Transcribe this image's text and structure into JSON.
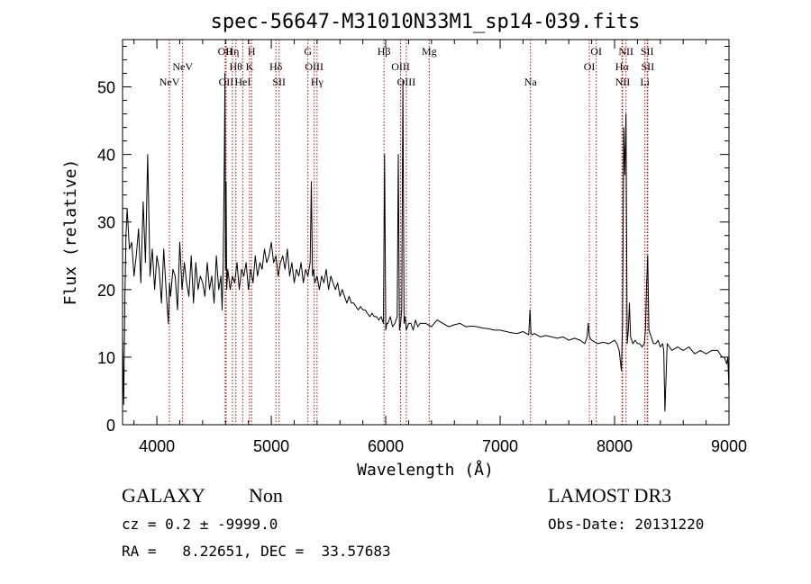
{
  "chart_data": {
    "type": "line",
    "title": "spec-56647-M31010N33M1_sp14-039.fits",
    "xlabel": "Wavelength (Å)",
    "ylabel": "Flux (relative)",
    "xlim": [
      3700,
      9000
    ],
    "ylim": [
      0,
      57
    ],
    "xticks": [
      4000,
      5000,
      6000,
      7000,
      8000,
      9000
    ],
    "xtick_labels": [
      "4000",
      "5000",
      "6000",
      "7000",
      "8000",
      "9000"
    ],
    "yticks": [
      0,
      10,
      20,
      30,
      40,
      50
    ],
    "ytick_labels": [
      "0",
      "10",
      "20",
      "30",
      "40",
      "50"
    ],
    "grid": false,
    "series": [
      {
        "name": "flux",
        "x": [
          3700,
          3710,
          3720,
          3730,
          3740,
          3760,
          3780,
          3800,
          3820,
          3840,
          3860,
          3880,
          3900,
          3920,
          3940,
          3960,
          3980,
          4000,
          4020,
          4040,
          4060,
          4080,
          4100,
          4110,
          4120,
          4140,
          4160,
          4180,
          4200,
          4220,
          4240,
          4260,
          4280,
          4300,
          4320,
          4340,
          4360,
          4380,
          4400,
          4420,
          4440,
          4460,
          4480,
          4500,
          4520,
          4540,
          4560,
          4570,
          4580,
          4590,
          4595,
          4600,
          4605,
          4610,
          4620,
          4640,
          4660,
          4680,
          4700,
          4720,
          4740,
          4760,
          4780,
          4800,
          4820,
          4840,
          4860,
          4880,
          4900,
          4920,
          4940,
          4960,
          4980,
          5000,
          5020,
          5040,
          5060,
          5080,
          5100,
          5120,
          5140,
          5160,
          5180,
          5200,
          5220,
          5240,
          5260,
          5280,
          5300,
          5320,
          5340,
          5350,
          5360,
          5370,
          5380,
          5400,
          5420,
          5440,
          5460,
          5480,
          5500,
          5520,
          5540,
          5560,
          5580,
          5600,
          5620,
          5640,
          5660,
          5680,
          5700,
          5720,
          5740,
          5760,
          5780,
          5800,
          5820,
          5840,
          5860,
          5880,
          5900,
          5920,
          5940,
          5960,
          5980,
          5990,
          6000,
          6010,
          6020,
          6040,
          6060,
          6080,
          6100,
          6110,
          6120,
          6130,
          6140,
          6150,
          6160,
          6170,
          6180,
          6200,
          6220,
          6240,
          6260,
          6280,
          6300,
          6350,
          6400,
          6450,
          6500,
          6550,
          6600,
          6650,
          6700,
          6750,
          6800,
          6850,
          6900,
          6950,
          7000,
          7050,
          7100,
          7150,
          7200,
          7250,
          7260,
          7270,
          7280,
          7300,
          7350,
          7400,
          7450,
          7500,
          7550,
          7600,
          7650,
          7700,
          7740,
          7760,
          7770,
          7780,
          7800,
          7850,
          7900,
          7950,
          8000,
          8020,
          8040,
          8060,
          8070,
          8080,
          8090,
          8100,
          8110,
          8120,
          8130,
          8140,
          8160,
          8180,
          8200,
          8220,
          8240,
          8260,
          8270,
          8280,
          8290,
          8300,
          8320,
          8340,
          8360,
          8380,
          8400,
          8420,
          8430,
          8440,
          8460,
          8500,
          8550,
          8600,
          8650,
          8700,
          8750,
          8800,
          8850,
          8900,
          8940,
          8960,
          8980,
          8990,
          9000
        ],
        "values": [
          13,
          3,
          18,
          28,
          32,
          26,
          27,
          22,
          25,
          29,
          21,
          33,
          24,
          40,
          22,
          26,
          20,
          25,
          23,
          18,
          26,
          20,
          15,
          21,
          19,
          23,
          22,
          17,
          27,
          20,
          24,
          21,
          19,
          25,
          18,
          24,
          20,
          22,
          21,
          19,
          24,
          20,
          22,
          18,
          25,
          20,
          22,
          17,
          24,
          40,
          52,
          23,
          36,
          20,
          23,
          20,
          22,
          21,
          24,
          20,
          23,
          22,
          24,
          20,
          23,
          21,
          25,
          22,
          24,
          23,
          26,
          24,
          25,
          27,
          24,
          25,
          22,
          24,
          25,
          23,
          26,
          22,
          24,
          21,
          23,
          22,
          24,
          21,
          23,
          22,
          24,
          36,
          22,
          23,
          21,
          22,
          20,
          22,
          21,
          23,
          20,
          22,
          21,
          20,
          21,
          19,
          20,
          19,
          18,
          19,
          18,
          18,
          17.5,
          17,
          17.5,
          17,
          17,
          16.5,
          16,
          16.5,
          16,
          16,
          15.5,
          16,
          15,
          40,
          14,
          15,
          15,
          16,
          14.5,
          15,
          16,
          40,
          14,
          15,
          17,
          51,
          15,
          16,
          14,
          15,
          15,
          14,
          15.5,
          14.5,
          15,
          15,
          14.5,
          15.5,
          15,
          14.5,
          14.8,
          15,
          14.5,
          14.6,
          14.5,
          14.3,
          14.2,
          14,
          14,
          13.8,
          13.6,
          13.5,
          13.8,
          13.3,
          17,
          13.5,
          13.3,
          13.5,
          13,
          13.2,
          13,
          12.8,
          13,
          12.5,
          12.8,
          12.5,
          12,
          13,
          15,
          13,
          12.5,
          12,
          12.2,
          12,
          12.5,
          12,
          11,
          8,
          15,
          44,
          37,
          46,
          12,
          14,
          18,
          13,
          12,
          12.5,
          12,
          12,
          11.5,
          12,
          14,
          21,
          25,
          14,
          13,
          12,
          12,
          12.5,
          11.5,
          12,
          11,
          2,
          12,
          11,
          11.5,
          11,
          11.5,
          10.5,
          11,
          10.5,
          11,
          11,
          10,
          10,
          9,
          10,
          5
        ]
      }
    ],
    "line_markers": [
      {
        "label": "NeV",
        "wave": 4110,
        "row": 3
      },
      {
        "label": "NeV",
        "wave": 4225,
        "row": 2
      },
      {
        "label": "OII",
        "wave": 4597,
        "row": 1
      },
      {
        "label": "OII",
        "wave": 4605,
        "row": 3
      },
      {
        "label": "Hη",
        "wave": 4660,
        "row": 1
      },
      {
        "label": "Hθ",
        "wave": 4690,
        "row": 2
      },
      {
        "label": "HeI",
        "wave": 4750,
        "row": 3
      },
      {
        "label": "H",
        "wave": 4828,
        "row": 1
      },
      {
        "label": "K",
        "wave": 4810,
        "row": 2
      },
      {
        "label": "Hδ",
        "wave": 5040,
        "row": 2
      },
      {
        "label": "SII",
        "wave": 5068,
        "row": 3
      },
      {
        "label": "G",
        "wave": 5320,
        "row": 1
      },
      {
        "label": "OIII",
        "wave": 5375,
        "row": 2
      },
      {
        "label": "Hγ",
        "wave": 5400,
        "row": 3
      },
      {
        "label": "Hβ",
        "wave": 5985,
        "row": 1
      },
      {
        "label": "OIII",
        "wave": 6130,
        "row": 2
      },
      {
        "label": "OIII",
        "wave": 6180,
        "row": 3
      },
      {
        "label": "Mg",
        "wave": 6380,
        "row": 1
      },
      {
        "label": "Na",
        "wave": 7265,
        "row": 3
      },
      {
        "label": "OI",
        "wave": 7840,
        "row": 1
      },
      {
        "label": "OI",
        "wave": 7780,
        "row": 2
      },
      {
        "label": "NII",
        "wave": 8100,
        "row": 1
      },
      {
        "label": "Hα",
        "wave": 8065,
        "row": 2
      },
      {
        "label": "NII",
        "wave": 8070,
        "row": 3
      },
      {
        "label": "SII",
        "wave": 8285,
        "row": 1
      },
      {
        "label": "SII",
        "wave": 8290,
        "row": 2
      },
      {
        "label": "Li",
        "wave": 8265,
        "row": 3
      }
    ]
  },
  "info": {
    "object_class": "GALAXY",
    "subclass": "Non",
    "survey": "LAMOST DR3",
    "redshift": "cz = 0.2 ± -9999.0",
    "obs_date": "Obs-Date: 20131220",
    "coordinates": "RA =   8.22651, DEC =  33.57683"
  },
  "colors": {
    "line": "#000000",
    "marker": "#cc0000",
    "axis": "#000000"
  }
}
